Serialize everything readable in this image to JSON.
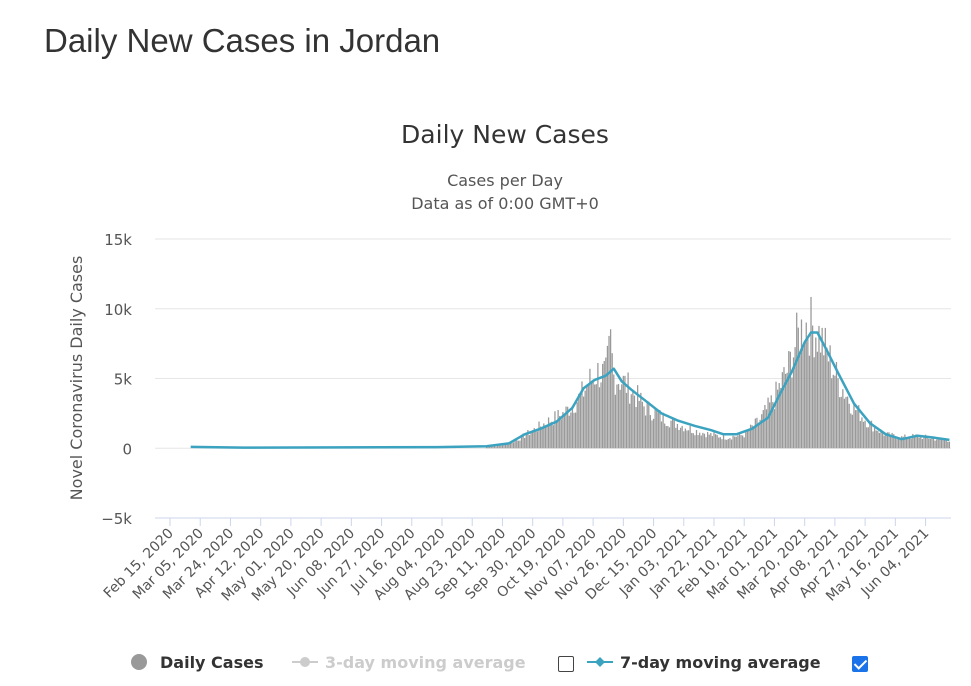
{
  "page": {
    "heading": "Daily New Cases in Jordan"
  },
  "chart_data": {
    "type": "bar",
    "title": "Daily New Cases",
    "subtitle": "Cases per Day",
    "subtitle2": "Data as of 0:00 GMT+0",
    "ylabel": "Novel Coronavirus Daily Cases",
    "xlabel": "",
    "ylim": [
      -5000,
      15000
    ],
    "y_ticks": [
      15000,
      10000,
      5000,
      0,
      -5000
    ],
    "y_tick_labels": [
      "15k",
      "10k",
      "5k",
      "0",
      "−5k"
    ],
    "x_start": "2020-02-15",
    "x_end": "2021-06-20",
    "x_tick_labels": [
      "Feb 15, 2020",
      "Mar 05, 2020",
      "Mar 24, 2020",
      "Apr 12, 2020",
      "May 01, 2020",
      "May 20, 2020",
      "Jun 08, 2020",
      "Jun 27, 2020",
      "Jul 16, 2020",
      "Aug 04, 2020",
      "Aug 23, 2020",
      "Sep 11, 2020",
      "Sep 30, 2020",
      "Oct 19, 2020",
      "Nov 07, 2020",
      "Nov 26, 2020",
      "Dec 15, 2020",
      "Jan 03, 2021",
      "Jan 22, 2021",
      "Feb 10, 2021",
      "Mar 01, 2021",
      "Mar 20, 2021",
      "Apr 08, 2021",
      "Apr 27, 2021",
      "May 16, 2021",
      "Jun 04, 2021"
    ],
    "gridlines": true,
    "legend_position": "bottom",
    "series": [
      {
        "name": "Daily Cases",
        "type": "bar",
        "color": "#999999",
        "x": [
          "2020-09-01",
          "2020-09-10",
          "2020-09-20",
          "2020-09-30",
          "2020-10-10",
          "2020-10-20",
          "2020-10-30",
          "2020-11-05",
          "2020-11-10",
          "2020-11-15",
          "2020-11-18",
          "2020-11-20",
          "2020-11-25",
          "2020-12-01",
          "2020-12-10",
          "2020-12-20",
          "2020-12-30",
          "2021-01-10",
          "2021-01-20",
          "2021-01-30",
          "2021-02-10",
          "2021-02-20",
          "2021-03-01",
          "2021-03-10",
          "2021-03-15",
          "2021-03-20",
          "2021-03-25",
          "2021-03-30",
          "2021-04-05",
          "2021-04-10",
          "2021-04-20",
          "2021-04-30",
          "2021-05-10",
          "2021-05-20",
          "2021-05-30",
          "2021-06-10",
          "2021-06-19"
        ],
        "values": [
          100,
          200,
          600,
          1300,
          2000,
          2600,
          3800,
          5000,
          5600,
          5400,
          7800,
          5300,
          5000,
          4300,
          3000,
          2300,
          1800,
          1300,
          1000,
          800,
          1000,
          2100,
          3700,
          6000,
          8000,
          9200,
          9000,
          8200,
          6500,
          5000,
          3000,
          1800,
          1000,
          800,
          900,
          700,
          600
        ]
      },
      {
        "name": "3-day moving average",
        "type": "line",
        "color": "#cccccc",
        "enabled": false
      },
      {
        "name": "7-day moving average",
        "type": "line",
        "color": "#3ba3c0",
        "enabled": true,
        "x": [
          "2020-02-28",
          "2020-04-01",
          "2020-06-01",
          "2020-08-01",
          "2020-09-01",
          "2020-09-15",
          "2020-09-25",
          "2020-10-05",
          "2020-10-15",
          "2020-10-25",
          "2020-11-01",
          "2020-11-08",
          "2020-11-15",
          "2020-11-20",
          "2020-11-25",
          "2020-12-01",
          "2020-12-10",
          "2020-12-20",
          "2020-12-30",
          "2021-01-10",
          "2021-01-20",
          "2021-01-28",
          "2021-02-05",
          "2021-02-15",
          "2021-02-25",
          "2021-03-05",
          "2021-03-12",
          "2021-03-20",
          "2021-03-24",
          "2021-03-28",
          "2021-04-03",
          "2021-04-10",
          "2021-04-20",
          "2021-04-30",
          "2021-05-10",
          "2021-05-20",
          "2021-05-30",
          "2021-06-10",
          "2021-06-19"
        ],
        "values": [
          100,
          50,
          60,
          80,
          150,
          350,
          1000,
          1400,
          1900,
          2900,
          4300,
          4900,
          5200,
          5700,
          4800,
          4200,
          3400,
          2500,
          2000,
          1600,
          1300,
          1000,
          1000,
          1400,
          2200,
          4000,
          5500,
          7600,
          8300,
          8300,
          7000,
          5400,
          3200,
          1800,
          1000,
          650,
          900,
          750,
          600
        ]
      }
    ]
  },
  "legend": {
    "daily": "Daily Cases",
    "ma3": "3-day moving average",
    "ma7": "7-day moving average"
  }
}
